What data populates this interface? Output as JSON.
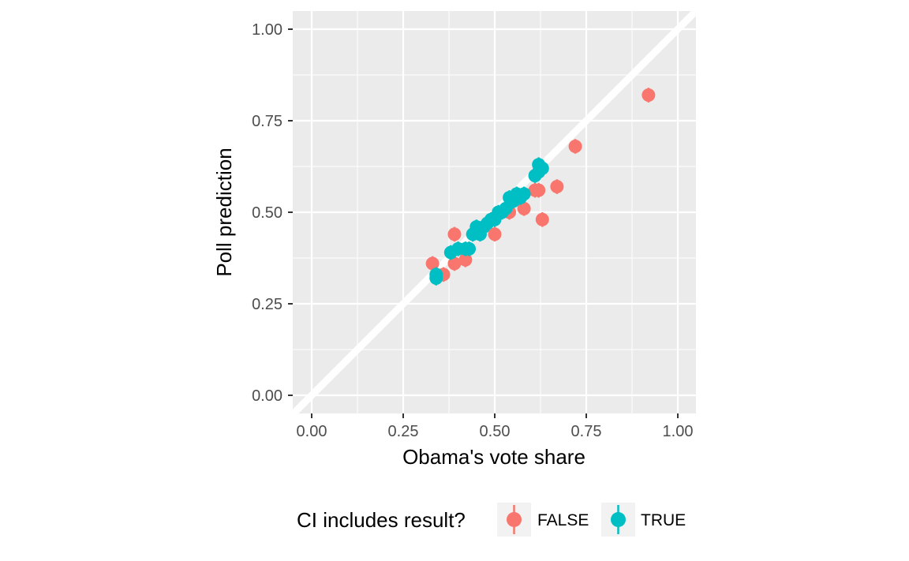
{
  "chart_data": {
    "type": "scatter",
    "title": "",
    "xlabel": "Obama's vote share",
    "ylabel": "Poll prediction",
    "xlim": [
      0,
      1
    ],
    "ylim": [
      0,
      1
    ],
    "xticks": [
      "0.00",
      "0.25",
      "0.50",
      "0.75",
      "1.00"
    ],
    "yticks": [
      "0.00",
      "0.25",
      "0.50",
      "0.75",
      "1.00"
    ],
    "grid": true,
    "reference_line": {
      "slope": 1,
      "intercept": 0,
      "color": "#ffffff"
    },
    "error_bar_half_width": 0.02,
    "legend": {
      "title": "CI includes result?",
      "position": "bottom",
      "entries": [
        {
          "label": "FALSE",
          "color": "#F8766D"
        },
        {
          "label": "TRUE",
          "color": "#00BFC4"
        }
      ]
    },
    "series": [
      {
        "name": "FALSE",
        "color": "#F8766D",
        "points": [
          {
            "x": 0.33,
            "y": 0.36
          },
          {
            "x": 0.36,
            "y": 0.33
          },
          {
            "x": 0.39,
            "y": 0.44
          },
          {
            "x": 0.39,
            "y": 0.36
          },
          {
            "x": 0.42,
            "y": 0.37
          },
          {
            "x": 0.5,
            "y": 0.44
          },
          {
            "x": 0.54,
            "y": 0.5
          },
          {
            "x": 0.58,
            "y": 0.51
          },
          {
            "x": 0.61,
            "y": 0.56
          },
          {
            "x": 0.62,
            "y": 0.56
          },
          {
            "x": 0.63,
            "y": 0.48
          },
          {
            "x": 0.67,
            "y": 0.57
          },
          {
            "x": 0.72,
            "y": 0.68
          },
          {
            "x": 0.92,
            "y": 0.82
          }
        ]
      },
      {
        "name": "TRUE",
        "color": "#00BFC4",
        "points": [
          {
            "x": 0.34,
            "y": 0.32
          },
          {
            "x": 0.34,
            "y": 0.33
          },
          {
            "x": 0.38,
            "y": 0.39
          },
          {
            "x": 0.4,
            "y": 0.4
          },
          {
            "x": 0.42,
            "y": 0.4
          },
          {
            "x": 0.43,
            "y": 0.4
          },
          {
            "x": 0.44,
            "y": 0.44
          },
          {
            "x": 0.45,
            "y": 0.46
          },
          {
            "x": 0.46,
            "y": 0.44
          },
          {
            "x": 0.47,
            "y": 0.46
          },
          {
            "x": 0.48,
            "y": 0.47
          },
          {
            "x": 0.49,
            "y": 0.48
          },
          {
            "x": 0.5,
            "y": 0.48
          },
          {
            "x": 0.51,
            "y": 0.5
          },
          {
            "x": 0.52,
            "y": 0.5
          },
          {
            "x": 0.53,
            "y": 0.51
          },
          {
            "x": 0.54,
            "y": 0.54
          },
          {
            "x": 0.55,
            "y": 0.53
          },
          {
            "x": 0.56,
            "y": 0.55
          },
          {
            "x": 0.57,
            "y": 0.54
          },
          {
            "x": 0.58,
            "y": 0.55
          },
          {
            "x": 0.61,
            "y": 0.6
          },
          {
            "x": 0.62,
            "y": 0.61
          },
          {
            "x": 0.62,
            "y": 0.63
          },
          {
            "x": 0.63,
            "y": 0.62
          }
        ]
      }
    ]
  }
}
